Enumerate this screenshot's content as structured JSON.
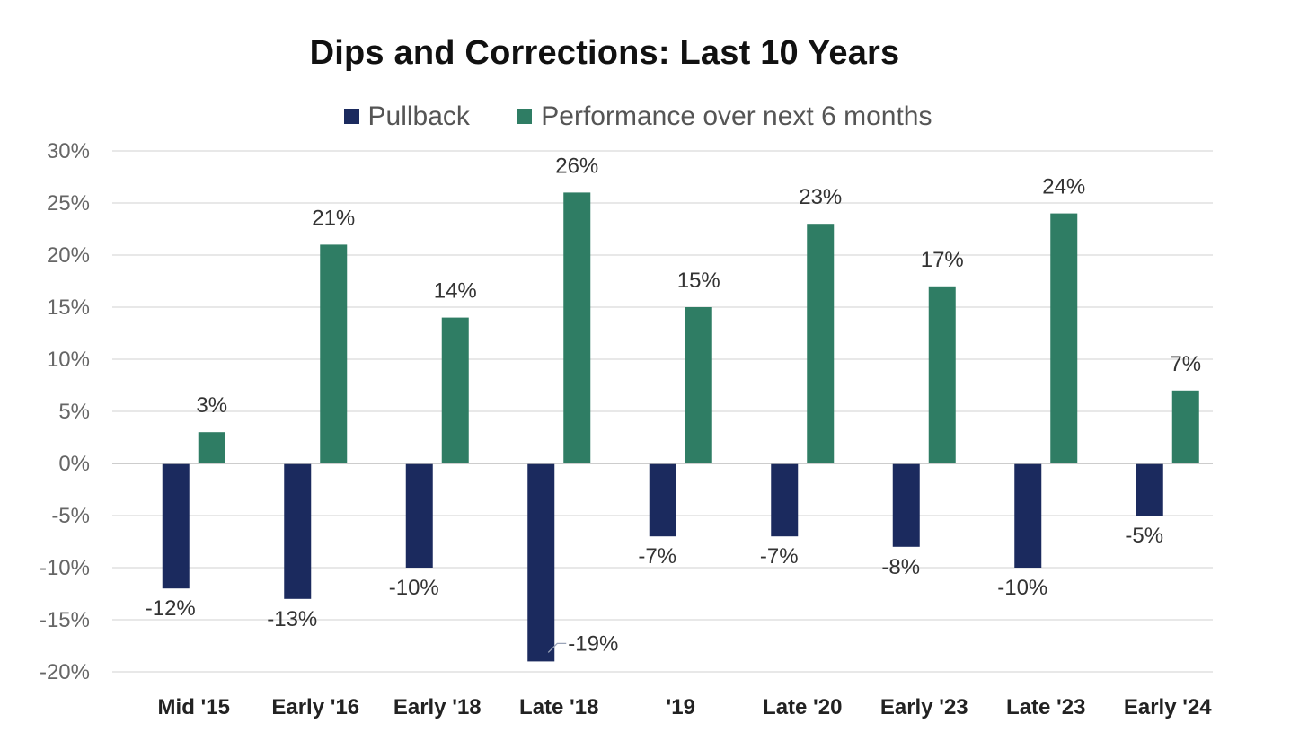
{
  "chart_data": {
    "type": "bar",
    "title": "Dips and Corrections: Last 10 Years",
    "xlabel": "",
    "ylabel": "",
    "categories": [
      "Mid '15",
      "Early '16",
      "Early '18",
      "Late '18",
      "'19",
      "Late '20",
      "Early '23",
      "Late '23",
      "Early '24"
    ],
    "series": [
      {
        "name": "Pullback",
        "color": "#1b2a5e",
        "values": [
          -12,
          -13,
          -10,
          -19,
          -7,
          -7,
          -8,
          -10,
          -5
        ],
        "labels": [
          "-12%",
          "-13%",
          "-10%",
          "-19%",
          "-7%",
          "-7%",
          "-8%",
          "-10%",
          "-5%"
        ]
      },
      {
        "name": "Performance over next 6 months",
        "color": "#2f7d64",
        "values": [
          3,
          21,
          14,
          26,
          15,
          23,
          17,
          24,
          7
        ],
        "labels": [
          "3%",
          "21%",
          "14%",
          "26%",
          "15%",
          "23%",
          "17%",
          "24%",
          "7%"
        ]
      }
    ],
    "ylim": [
      -20,
      30
    ],
    "yticks": [
      30,
      25,
      20,
      15,
      10,
      5,
      0,
      -5,
      -10,
      -15,
      -20
    ],
    "ytick_labels": [
      "30%",
      "25%",
      "20%",
      "15%",
      "10%",
      "5%",
      "0%",
      "-5%",
      "-10%",
      "-15%",
      "-20%"
    ],
    "grid": true,
    "legend_position": "top"
  }
}
